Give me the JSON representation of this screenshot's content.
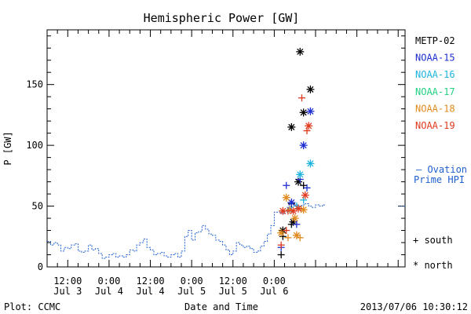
{
  "chart_data": {
    "type": "scatter",
    "title": "Hemispheric Power [GW]",
    "ylabel": "P [GW]",
    "xlabel": "Date and Time",
    "ylim": [
      0,
      195
    ],
    "yticks": [
      0,
      50,
      100,
      150
    ],
    "xrange_hours": [
      6,
      110
    ],
    "xticks": [
      {
        "h": 12,
        "line1": "12:00",
        "line2": "Jul 3"
      },
      {
        "h": 24,
        "line1": "0:00",
        "line2": "Jul 4"
      },
      {
        "h": 36,
        "line1": "12:00",
        "line2": "Jul 4"
      },
      {
        "h": 48,
        "line1": "0:00",
        "line2": "Jul 5"
      },
      {
        "h": 60,
        "line1": "12:00",
        "line2": "Jul 5"
      },
      {
        "h": 72,
        "line1": "0:00",
        "line2": "Jul 6"
      }
    ],
    "legend": [
      {
        "name": "METP-02",
        "color": "#000000"
      },
      {
        "name": "NOAA-15",
        "color": "#1f2fd0"
      },
      {
        "name": "NOAA-16",
        "color": "#1fb4e0"
      },
      {
        "name": "NOAA-17",
        "color": "#22d080"
      },
      {
        "name": "NOAA-18",
        "color": "#e08a1e"
      },
      {
        "name": "NOAA-19",
        "color": "#e03a1e"
      }
    ],
    "symbol_legend": [
      {
        "symbol": "+",
        "label": "south"
      },
      {
        "symbol": "*",
        "label": "north"
      }
    ],
    "ovation_label_1": "— Ovation",
    "ovation_label_2": "Prime HPI",
    "ovation_color": "#1f5fd0",
    "ovation_line": [
      [
        6,
        21
      ],
      [
        7,
        18
      ],
      [
        8,
        20
      ],
      [
        9,
        18
      ],
      [
        10,
        13
      ],
      [
        11,
        16
      ],
      [
        12,
        15
      ],
      [
        13,
        18
      ],
      [
        14,
        19
      ],
      [
        15,
        13
      ],
      [
        16,
        12
      ],
      [
        17,
        13
      ],
      [
        18,
        18
      ],
      [
        19,
        14
      ],
      [
        20,
        15
      ],
      [
        21,
        11
      ],
      [
        22,
        7
      ],
      [
        23,
        8
      ],
      [
        24,
        10
      ],
      [
        25,
        11
      ],
      [
        26,
        8
      ],
      [
        27,
        9
      ],
      [
        28,
        8
      ],
      [
        29,
        10
      ],
      [
        30,
        14
      ],
      [
        31,
        13
      ],
      [
        32,
        18
      ],
      [
        33,
        20
      ],
      [
        34,
        23
      ],
      [
        35,
        16
      ],
      [
        36,
        14
      ],
      [
        37,
        10
      ],
      [
        38,
        11
      ],
      [
        39,
        12
      ],
      [
        40,
        9
      ],
      [
        41,
        8
      ],
      [
        42,
        10
      ],
      [
        43,
        11
      ],
      [
        44,
        8
      ],
      [
        45,
        13
      ],
      [
        46,
        25
      ],
      [
        47,
        30
      ],
      [
        48,
        22
      ],
      [
        49,
        28
      ],
      [
        50,
        29
      ],
      [
        51,
        34
      ],
      [
        52,
        31
      ],
      [
        53,
        27
      ],
      [
        54,
        26
      ],
      [
        55,
        22
      ],
      [
        56,
        21
      ],
      [
        57,
        18
      ],
      [
        58,
        14
      ],
      [
        59,
        10
      ],
      [
        60,
        13
      ],
      [
        61,
        20
      ],
      [
        62,
        18
      ],
      [
        63,
        16
      ],
      [
        64,
        17
      ],
      [
        65,
        15
      ],
      [
        66,
        12
      ],
      [
        67,
        13
      ],
      [
        68,
        17
      ],
      [
        69,
        21
      ],
      [
        70,
        27
      ],
      [
        71,
        34
      ],
      [
        72,
        45
      ],
      [
        73,
        45
      ],
      [
        74,
        44
      ],
      [
        75,
        46
      ],
      [
        76,
        49
      ],
      [
        77,
        52
      ],
      [
        78,
        51
      ],
      [
        79,
        50
      ],
      [
        80,
        51
      ],
      [
        81,
        52
      ],
      [
        82,
        50
      ],
      [
        83,
        49
      ],
      [
        84,
        51
      ],
      [
        85,
        50
      ],
      [
        86,
        51
      ],
      [
        86.5,
        50
      ]
    ],
    "series": [
      {
        "name": "METP-02",
        "color": "#000000",
        "points": [
          {
            "x": 74.0,
            "y": 10,
            "s": "+"
          },
          {
            "x": 74.5,
            "y": 30,
            "s": "*"
          },
          {
            "x": 77.0,
            "y": 35,
            "s": "+"
          },
          {
            "x": 77.5,
            "y": 37,
            "s": "*"
          },
          {
            "x": 77.0,
            "y": 115,
            "s": "*"
          },
          {
            "x": 79.5,
            "y": 177,
            "s": "*"
          },
          {
            "x": 80.5,
            "y": 127,
            "s": "*"
          },
          {
            "x": 82.5,
            "y": 146,
            "s": "*"
          },
          {
            "x": 79.0,
            "y": 70,
            "s": "*"
          },
          {
            "x": 80.5,
            "y": 67,
            "s": "+"
          },
          {
            "x": 77.0,
            "y": 52,
            "s": "+"
          },
          {
            "x": 74.5,
            "y": 25,
            "s": "+"
          }
        ]
      },
      {
        "name": "NOAA-15",
        "color": "#1f2fd0",
        "points": [
          {
            "x": 75.5,
            "y": 67,
            "s": "+"
          },
          {
            "x": 77.0,
            "y": 53,
            "s": "*"
          },
          {
            "x": 78.5,
            "y": 35,
            "s": "+"
          },
          {
            "x": 79.5,
            "y": 72,
            "s": "+"
          },
          {
            "x": 80.5,
            "y": 100,
            "s": "*"
          },
          {
            "x": 81.5,
            "y": 65,
            "s": "+"
          },
          {
            "x": 82.5,
            "y": 128,
            "s": "*"
          },
          {
            "x": 74.0,
            "y": 16,
            "s": "+"
          }
        ]
      },
      {
        "name": "NOAA-16",
        "color": "#1fb4e0",
        "points": [
          {
            "x": 79.5,
            "y": 76,
            "s": "*"
          },
          {
            "x": 80.5,
            "y": 55,
            "s": "+"
          },
          {
            "x": 82.5,
            "y": 85,
            "s": "*"
          },
          {
            "x": 76.5,
            "y": 47,
            "s": "*"
          },
          {
            "x": 78.5,
            "y": 50,
            "s": "+"
          }
        ]
      },
      {
        "name": "NOAA-17",
        "color": "#22d080",
        "points": []
      },
      {
        "name": "NOAA-18",
        "color": "#e08a1e",
        "points": [
          {
            "x": 74.0,
            "y": 28,
            "s": "*"
          },
          {
            "x": 75.5,
            "y": 57,
            "s": "*"
          },
          {
            "x": 76.0,
            "y": 24,
            "s": "+"
          },
          {
            "x": 78.0,
            "y": 40,
            "s": "*"
          },
          {
            "x": 78.5,
            "y": 26,
            "s": "*"
          },
          {
            "x": 79.5,
            "y": 24,
            "s": "+"
          },
          {
            "x": 80.5,
            "y": 47,
            "s": "*"
          },
          {
            "x": 76.5,
            "y": 47,
            "s": "+"
          }
        ]
      },
      {
        "name": "NOAA-19",
        "color": "#e03a1e",
        "points": [
          {
            "x": 74.0,
            "y": 18,
            "s": "+"
          },
          {
            "x": 74.5,
            "y": 46,
            "s": "*"
          },
          {
            "x": 76.0,
            "y": 46,
            "s": "+"
          },
          {
            "x": 77.5,
            "y": 46,
            "s": "*"
          },
          {
            "x": 79.0,
            "y": 48,
            "s": "*"
          },
          {
            "x": 80.0,
            "y": 139,
            "s": "+"
          },
          {
            "x": 81.0,
            "y": 59,
            "s": "*"
          },
          {
            "x": 81.5,
            "y": 112,
            "s": "+"
          },
          {
            "x": 82.0,
            "y": 116,
            "s": "*"
          },
          {
            "x": 75.5,
            "y": 30,
            "s": "+"
          }
        ]
      }
    ]
  },
  "footer": {
    "plot_credit": "Plot: CCMC",
    "timestamp": "2013/07/06 10:30:12"
  }
}
